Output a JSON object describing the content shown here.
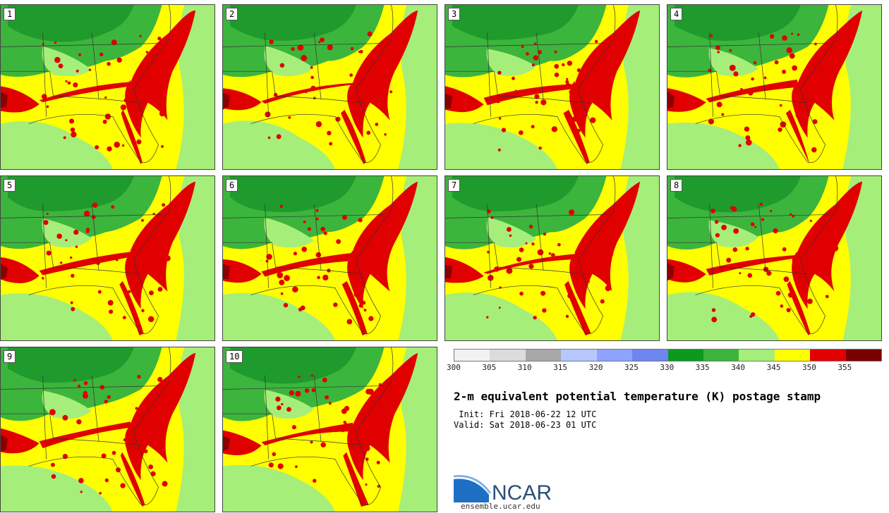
{
  "members": [
    "1",
    "2",
    "3",
    "4",
    "5",
    "6",
    "7",
    "8",
    "9",
    "10"
  ],
  "colorbar": {
    "ticks": [
      "300",
      "305",
      "310",
      "315",
      "320",
      "325",
      "330",
      "335",
      "340",
      "345",
      "350",
      "355"
    ],
    "colors": [
      "#f2f2f2",
      "#dcdcdc",
      "#a8a8a8",
      "#b6c8ff",
      "#8ea2ff",
      "#6e86f0",
      "#0b9a1e",
      "#3cb53c",
      "#a6ee7a",
      "#ffff00",
      "#e00000",
      "#7a0000"
    ]
  },
  "title": "2-m equivalent potential temperature (K) postage stamp",
  "init": " Init: Fri 2018-06-22 12 UTC",
  "valid": "Valid: Sat 2018-06-23 01 UTC",
  "logo": {
    "name": "NCAR",
    "url": "ensemble.ucar.edu"
  },
  "colors": {
    "dark_green": "#1f9a2c",
    "mid_green": "#3cb53c",
    "light_green": "#a6ee7a",
    "yellow": "#ffff00",
    "red": "#e00000",
    "dark_red": "#8b0000"
  }
}
